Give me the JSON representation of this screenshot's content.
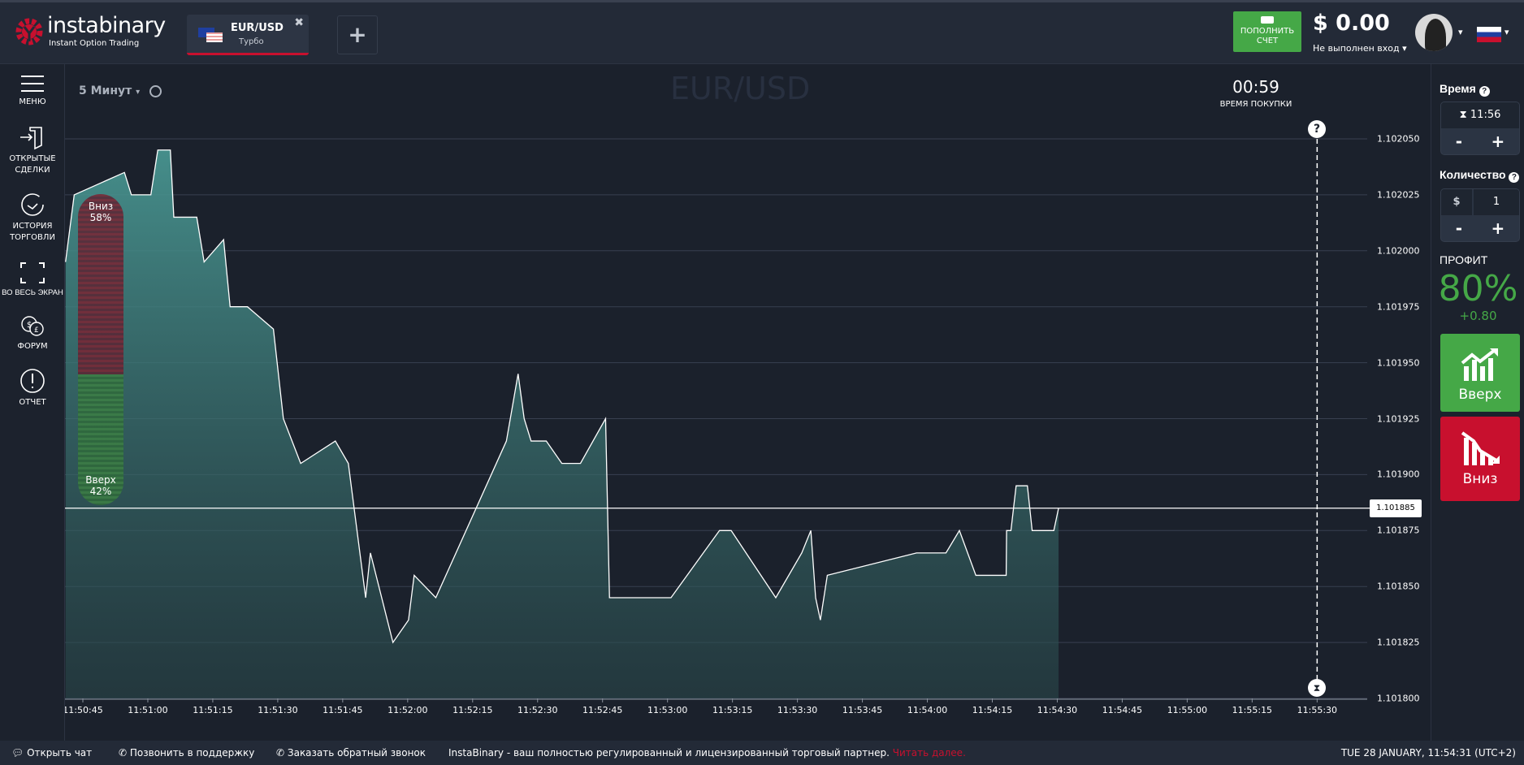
{
  "header": {
    "logo_name": "instabinary",
    "logo_tagline": "Instant Option Trading",
    "tab": {
      "pair": "EUR/USD",
      "type": "Турбо"
    },
    "add_tab_icon": "plus-icon",
    "deposit_label": "ПОПОЛНИТЬ СЧЕТ",
    "balance": "$ 0.00",
    "login_status": "Не выполнен вход"
  },
  "sidebar": {
    "items": [
      {
        "label": "МЕНЮ",
        "icon": "menu-icon"
      },
      {
        "label": "ОТКРЫТЫЕ СДЕЛКИ",
        "icon": "door-enter-icon"
      },
      {
        "label": "ИСТОРИЯ ТОРГОВЛИ",
        "icon": "history-icon"
      },
      {
        "label": "ВО ВЕСЬ ЭКРАН",
        "icon": "fullscreen-icon"
      },
      {
        "label": "ФОРУМ",
        "icon": "forum-icon"
      },
      {
        "label": "ОТЧЕТ",
        "icon": "report-icon"
      }
    ]
  },
  "chart_toolbar": {
    "interval": "5 Минут"
  },
  "timer": {
    "value": "00:59",
    "label": "ВРЕМЯ ПОКУПКИ"
  },
  "sentiment": {
    "down_label": "Вниз",
    "down_pct": "58%",
    "up_label": "Вверх",
    "up_pct": "42%",
    "down_fraction": 0.58
  },
  "right_panel": {
    "time_label": "Время",
    "time_value": "11:56",
    "amount_label": "Количество",
    "currency": "$",
    "amount_value": "1",
    "minus": "-",
    "plus": "+",
    "profit_label": "ПРОФИТ",
    "profit_pct": "80%",
    "profit_value": "+0.80",
    "up_label": "Вверх",
    "down_label": "Вниз",
    "colors": {
      "up": "#45a847",
      "down": "#c8102e",
      "profit": "#45a847"
    }
  },
  "footer": {
    "chat": "Открыть чат",
    "call": "Позвонить в поддержку",
    "callback": "Заказать обратный звонок",
    "promo": "InstaBinary - ваш полностью регулированный и лицензированный торговый партнер.",
    "read_more": "Читать далее.",
    "datetime": "TUE 28 JANUARY, 11:54:31 (UTC+2)"
  },
  "chart_data": {
    "type": "area",
    "title": "EUR/USD",
    "ylim": [
      1.1018,
      1.10205
    ],
    "yticks": [
      "1.102050",
      "1.102025",
      "1.102000",
      "1.101975",
      "1.101950",
      "1.101925",
      "1.101900",
      "1.101875",
      "1.101850",
      "1.101825",
      "1.101800"
    ],
    "xticks": [
      "11:50:45",
      "11:51:00",
      "11:51:15",
      "11:51:30",
      "11:51:45",
      "11:52:00",
      "11:52:15",
      "11:52:30",
      "11:52:45",
      "11:53:00",
      "11:53:15",
      "11:53:30",
      "11:53:45",
      "11:54:00",
      "11:54:15",
      "11:54:30",
      "11:54:45",
      "11:55:00",
      "11:55:15",
      "11:55:30"
    ],
    "x_start": "11:50:45",
    "x_step_seconds": 15,
    "current_price": "1.101885",
    "expiry_seconds": 285,
    "series": [
      {
        "name": "EUR/USD",
        "t_seconds": [
          -4,
          -2,
          9.6,
          11.2,
          15.7,
          17.3,
          20.2,
          21,
          26.3,
          28,
          32.5,
          34,
          38,
          44,
          46.3,
          50.3,
          58.3,
          61.3,
          65.3,
          66.4,
          71.6,
          75.2,
          76.5,
          81.5,
          97.8,
          100.5,
          101.9,
          103.5,
          107,
          110.6,
          114.9,
          120.7,
          121.6,
          135.8,
          147,
          149.7,
          160,
          166,
          168.1,
          169.2,
          170.3,
          171.9,
          192.5,
          199.3,
          202.4,
          206.2,
          213.2,
          213.3,
          214.3,
          215.5,
          218.1,
          219.2,
          224.2,
          225.3
        ],
        "values": [
          1.101995,
          1.102025,
          1.102035,
          1.102025,
          1.102025,
          1.102045,
          1.102045,
          1.102015,
          1.102015,
          1.101995,
          1.102005,
          1.101975,
          1.101975,
          1.101965,
          1.101925,
          1.101905,
          1.101915,
          1.101905,
          1.101845,
          1.101865,
          1.101825,
          1.101835,
          1.101855,
          1.101845,
          1.101915,
          1.101945,
          1.101925,
          1.101915,
          1.101915,
          1.101905,
          1.101905,
          1.101925,
          1.101845,
          1.101845,
          1.101875,
          1.101875,
          1.101845,
          1.101865,
          1.101875,
          1.101845,
          1.101835,
          1.101855,
          1.101865,
          1.101865,
          1.101875,
          1.101855,
          1.101855,
          1.101875,
          1.101875,
          1.101895,
          1.101895,
          1.101875,
          1.101875,
          1.101885
        ]
      }
    ]
  }
}
